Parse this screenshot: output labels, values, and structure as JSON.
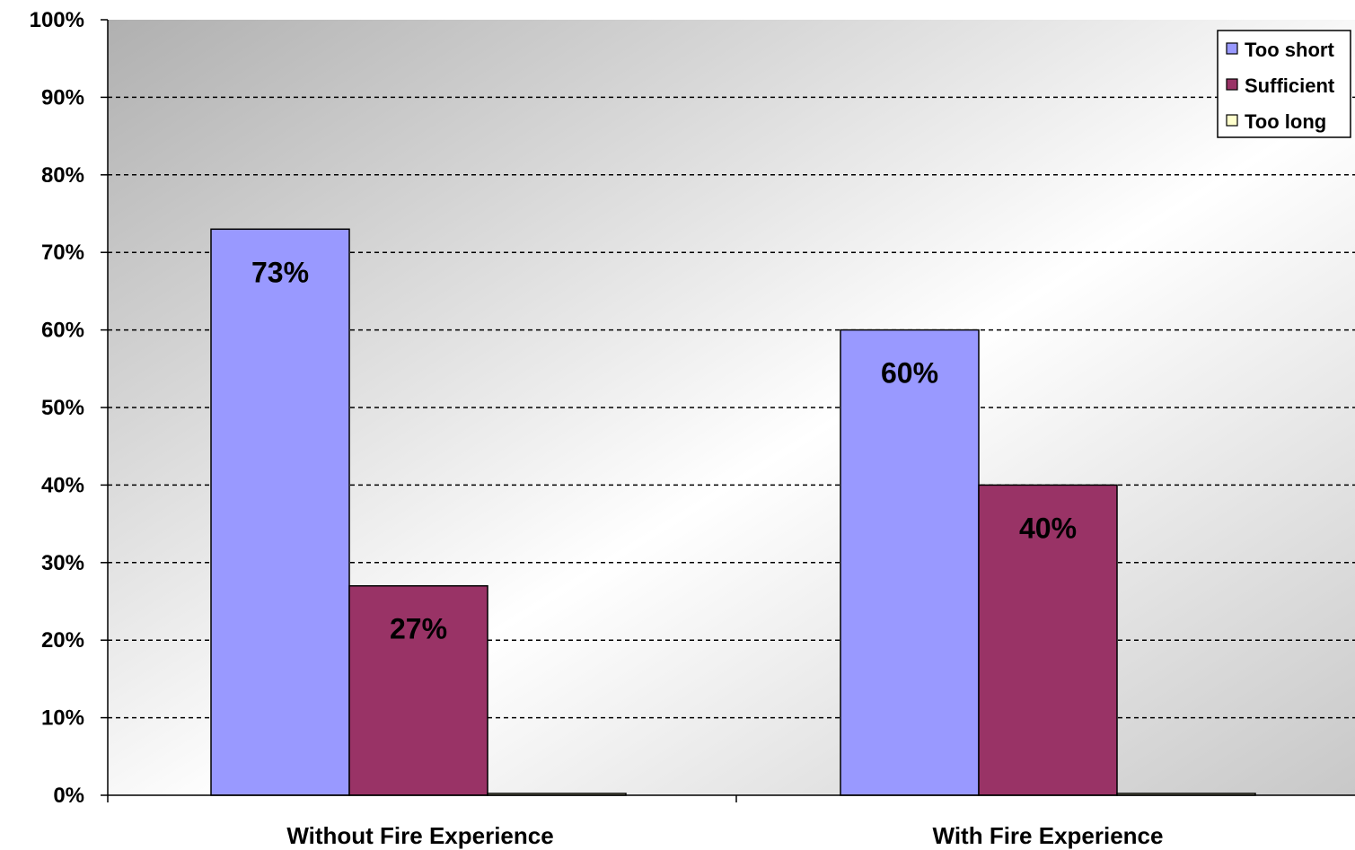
{
  "chart_data": {
    "type": "bar",
    "categories": [
      "Without Fire Experience",
      "With Fire Experience"
    ],
    "series": [
      {
        "name": "Too short",
        "values": [
          73,
          60
        ],
        "labels": [
          "73%",
          "60%"
        ],
        "color": "#9999ff"
      },
      {
        "name": "Sufficient",
        "values": [
          27,
          40
        ],
        "labels": [
          "27%",
          "40%"
        ],
        "color": "#993366"
      },
      {
        "name": "Too long",
        "values": [
          0,
          0
        ],
        "labels": [
          "",
          ""
        ],
        "color": "#ffffcc"
      }
    ],
    "title": "",
    "xlabel": "",
    "ylabel": "",
    "ylim": [
      0,
      100
    ],
    "yticks": [
      "0%",
      "10%",
      "20%",
      "30%",
      "40%",
      "50%",
      "60%",
      "70%",
      "80%",
      "90%",
      "100%"
    ],
    "grid": true,
    "legend_position": "top-right",
    "colors": {
      "plot_bg_dark": "#b4b4b4",
      "plot_bg_light": "#ffffff",
      "gridline": "#000000"
    }
  }
}
